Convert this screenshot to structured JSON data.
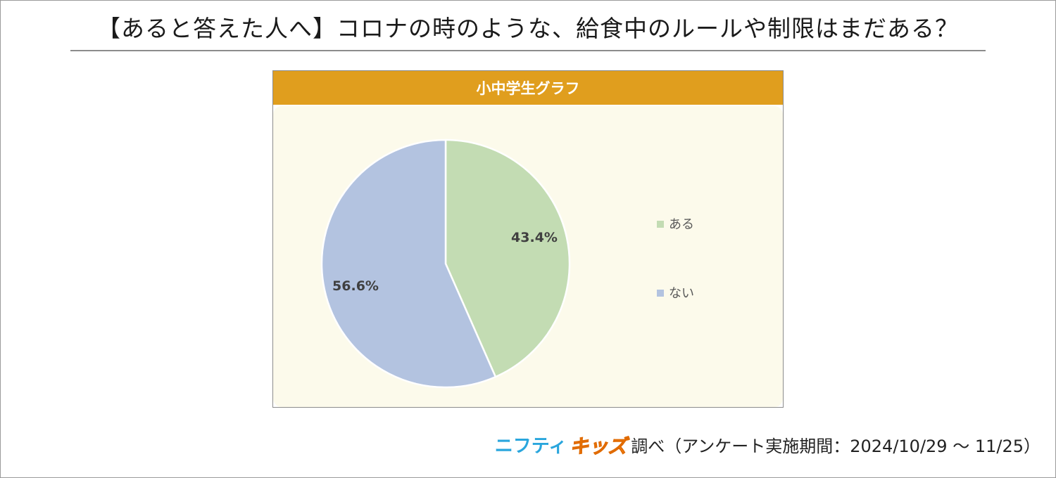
{
  "page_title": "【あると答えた人へ】コロナの時のような、給食中のルールや制限はまだある？",
  "chart_data": {
    "type": "pie",
    "title": "小中学生グラフ",
    "categories": [
      "ある",
      "ない"
    ],
    "values": [
      43.4,
      56.6
    ],
    "value_labels": [
      "43.4%",
      "56.6%"
    ],
    "colors": [
      "#c3dcb3",
      "#b3c3e0"
    ],
    "legend_position": "right",
    "header_color": "#e09e1e"
  },
  "footer": {
    "brand_part1": "ニフティ",
    "brand_part2": "キッズ",
    "survey_note": "調べ（アンケート実施期間：2024/10/29 ～ 11/25）"
  }
}
